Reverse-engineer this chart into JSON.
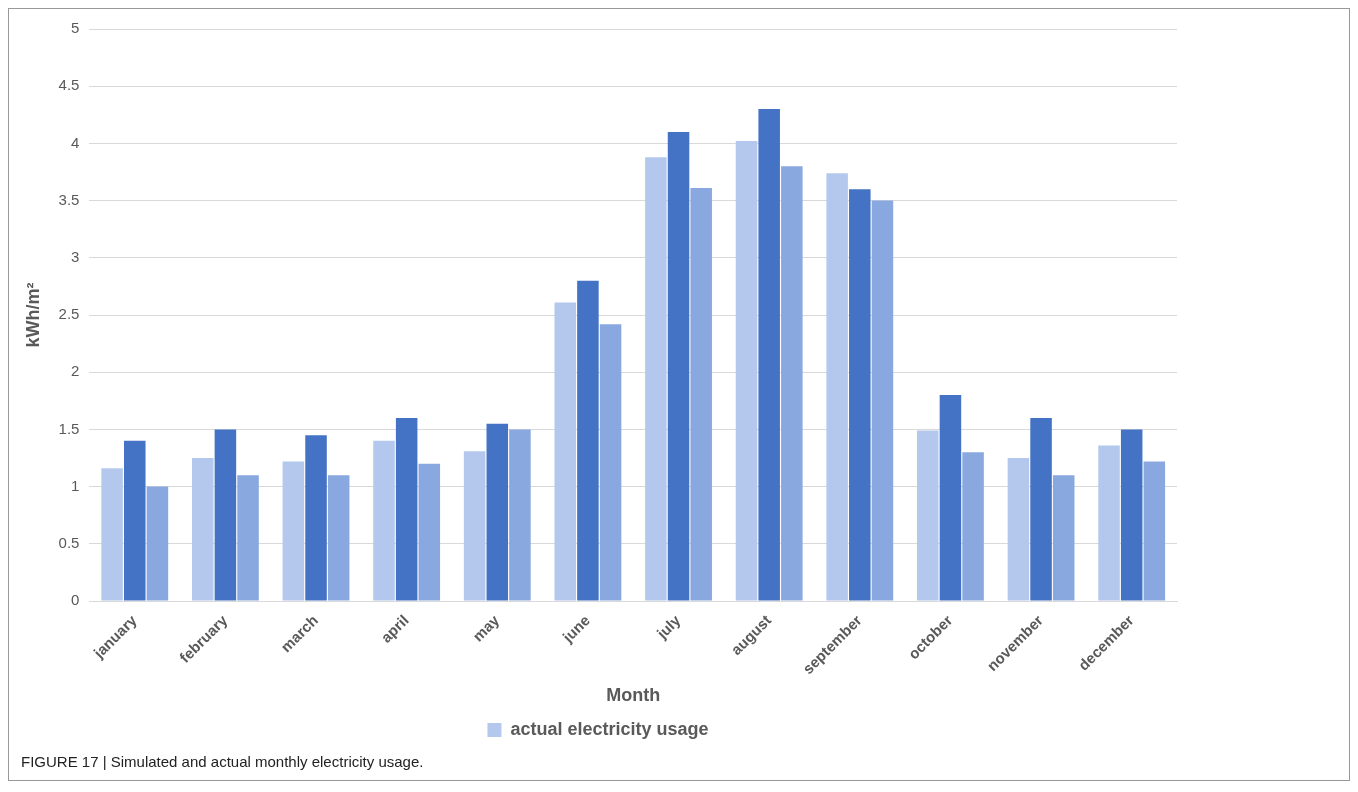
{
  "chart_data": {
    "type": "bar",
    "xlabel": "Month",
    "ylabel": "kWh/m²",
    "categories": [
      "january",
      "february",
      "march",
      "april",
      "may",
      "june",
      "july",
      "august",
      "september",
      "october",
      "november",
      "december"
    ],
    "series": [
      {
        "name": "actual electricity usage",
        "color": "#b4c8ee",
        "values": [
          1.16,
          1.25,
          1.22,
          1.4,
          1.31,
          2.61,
          3.88,
          4.02,
          3.74,
          1.49,
          1.25,
          1.36
        ]
      },
      {
        "color": "#4472c4",
        "values": [
          1.4,
          1.5,
          1.45,
          1.6,
          1.55,
          2.8,
          4.1,
          4.3,
          3.6,
          1.8,
          1.6,
          1.5
        ]
      },
      {
        "color": "#8aa8e0",
        "values": [
          1.0,
          1.1,
          1.1,
          1.2,
          1.5,
          2.42,
          3.61,
          3.8,
          3.5,
          1.3,
          1.1,
          1.22
        ]
      }
    ],
    "ylim": [
      0,
      5
    ],
    "yticks": [
      0,
      0.5,
      1,
      1.5,
      2,
      2.5,
      3,
      3.5,
      4,
      4.5,
      5
    ],
    "grid": "y",
    "legend": "bottom",
    "annotations": [
      "FIGURE 17 | Simulated and actual monthly electricity usage."
    ]
  }
}
